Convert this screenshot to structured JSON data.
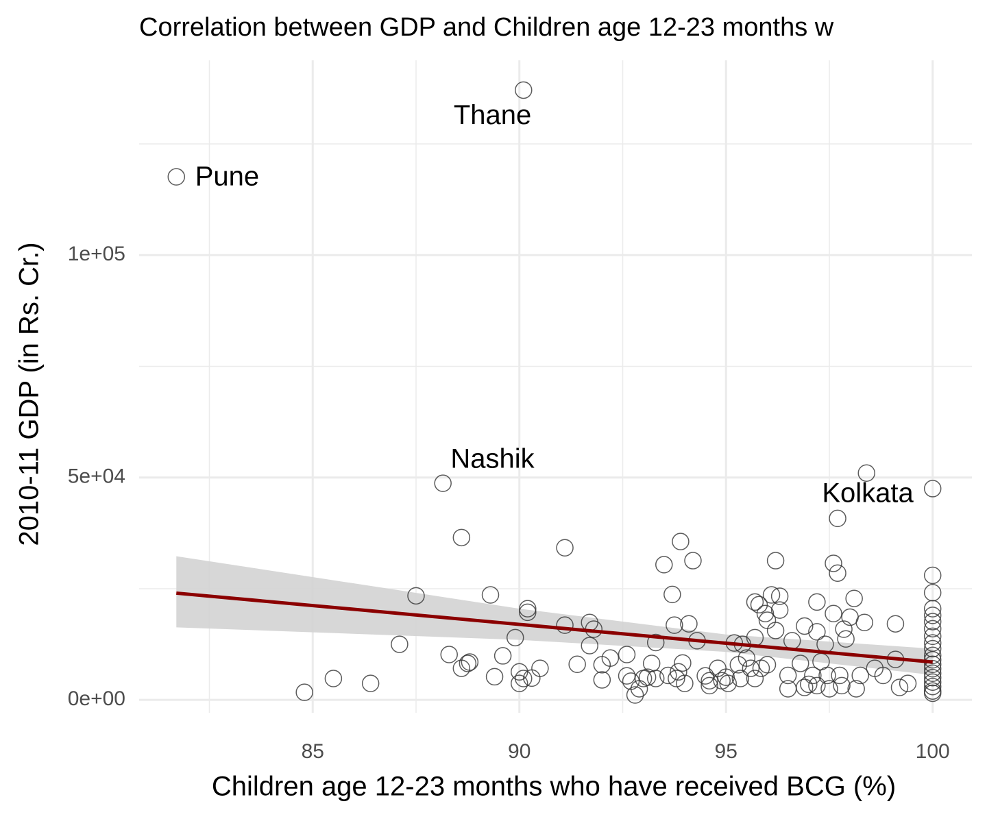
{
  "chart_data": {
    "type": "scatter",
    "title": "Correlation between GDP and Children age 12-23 months w",
    "x_label": "Children age 12-23 months who have received BCG (%)",
    "y_label": "2010-11 GDP (in Rs. Cr.)",
    "xlim": [
      80.8,
      100.95
    ],
    "ylim": [
      -2900,
      143800
    ],
    "xticks": [
      85,
      90,
      95,
      100
    ],
    "yticks": [
      {
        "value": 0,
        "label": "0e+00"
      },
      {
        "value": 50000,
        "label": "5e+04"
      },
      {
        "value": 100000,
        "label": "1e+05"
      }
    ],
    "minor_xticks": [
      82.5,
      87.5,
      92.5,
      97.5
    ],
    "minor_yticks": [
      25000,
      75000,
      125000
    ],
    "grid": true,
    "point_color": "#333333",
    "x": [
      81.7,
      90.1,
      88.15,
      100,
      84.8,
      85.5,
      86.4,
      87.1,
      87.5,
      88.3,
      88.6,
      88.6,
      88.75,
      88.8,
      89.3,
      89.4,
      89.6,
      89.9,
      90.0,
      90.0,
      90.1,
      90.2,
      90.2,
      90.3,
      90.5,
      91.1,
      91.1,
      91.4,
      91.7,
      91.7,
      91.8,
      92.0,
      92.0,
      92.2,
      92.6,
      92.6,
      92.7,
      92.8,
      92.9,
      93.0,
      93.1,
      93.2,
      93.3,
      93.3,
      93.5,
      93.6,
      93.7,
      93.75,
      93.8,
      93.85,
      93.9,
      93.95,
      94.0,
      94.1,
      94.2,
      94.3,
      94.5,
      94.6,
      94.6,
      94.8,
      94.9,
      95.0,
      95.05,
      95.2,
      95.3,
      95.35,
      95.4,
      95.5,
      95.6,
      95.7,
      95.7,
      95.7,
      95.8,
      95.85,
      95.95,
      96.0,
      96.0,
      96.1,
      96.2,
      96.2,
      96.3,
      96.3,
      96.5,
      96.5,
      96.6,
      96.8,
      96.9,
      96.9,
      97.0,
      97.1,
      97.2,
      97.2,
      97.2,
      97.3,
      97.4,
      97.45,
      97.5,
      97.6,
      97.6,
      97.7,
      97.7,
      97.75,
      97.8,
      97.85,
      97.9,
      98.0,
      98.1,
      98.15,
      98.25,
      98.35,
      98.4,
      98.6,
      98.8,
      99.1,
      99.1,
      99.2,
      99.4,
      100,
      100,
      100,
      100,
      100,
      100,
      100,
      100,
      100,
      100,
      100,
      100,
      100,
      100,
      100,
      100,
      100,
      100,
      100
    ],
    "y": [
      117600,
      137100,
      48700,
      47500,
      1700,
      4800,
      3700,
      12500,
      23400,
      10200,
      7100,
      36500,
      8200,
      8500,
      23600,
      5200,
      9900,
      14000,
      6300,
      3700,
      4800,
      20500,
      19700,
      4900,
      7100,
      34200,
      16800,
      8000,
      17400,
      12200,
      15900,
      4500,
      7900,
      9400,
      5400,
      10200,
      4200,
      1100,
      2500,
      4800,
      5100,
      8200,
      12900,
      4800,
      30400,
      5500,
      23700,
      16800,
      4800,
      6300,
      35600,
      8300,
      3700,
      17100,
      31300,
      13300,
      5400,
      4300,
      3200,
      7100,
      4300,
      5100,
      3700,
      12800,
      7900,
      4800,
      12500,
      9400,
      7100,
      22000,
      14000,
      4800,
      21400,
      7100,
      19400,
      17900,
      7900,
      23600,
      31300,
      15600,
      20200,
      23300,
      5500,
      2500,
      13300,
      8200,
      16600,
      2800,
      3500,
      5500,
      22000,
      15300,
      3200,
      8600,
      12500,
      5500,
      2500,
      19400,
      30700,
      28500,
      40800,
      5500,
      3200,
      15900,
      13700,
      18600,
      22800,
      2500,
      5500,
      17400,
      51000,
      7100,
      5500,
      17100,
      9100,
      2800,
      3700,
      28000,
      24100,
      20500,
      19000,
      17600,
      16000,
      14300,
      12800,
      11500,
      10000,
      9000,
      8000,
      7000,
      6000,
      5000,
      4000,
      3000,
      2000,
      1500
    ],
    "trend": {
      "color": "#8b0000",
      "band_color": "#d3d3d3",
      "x": [
        81.7,
        90,
        95,
        100
      ],
      "y": [
        24000,
        16970,
        12735,
        8500
      ],
      "lower": [
        16300,
        13500,
        10800,
        5600
      ],
      "upper": [
        32300,
        20500,
        14700,
        11500
      ]
    },
    "annotations": [
      {
        "text": "Pune",
        "x": 82.93,
        "y": 117300
      },
      {
        "text": "Thane",
        "x": 89.35,
        "y": 131100
      },
      {
        "text": "Nashik",
        "x": 89.35,
        "y": 53800
      },
      {
        "text": "Kolkata",
        "x": 98.43,
        "y": 46100
      }
    ]
  }
}
